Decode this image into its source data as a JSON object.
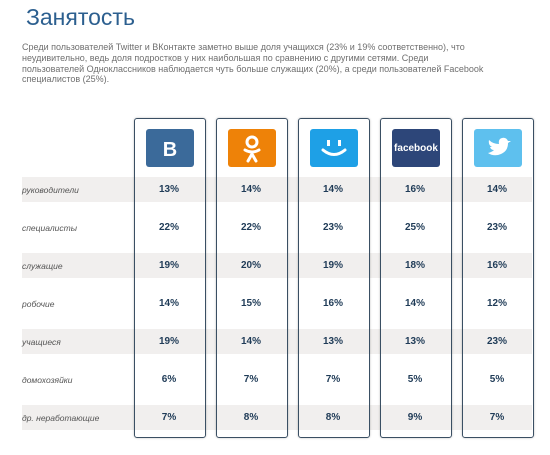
{
  "page": {
    "title": "Занятость",
    "description": "Среди пользователей Twitter и ВКонтакте заметно выше доля учащихся (23% и 19% соответственно), что неудивительно, ведь доля подростков у них наибольшая по сравнению с другими сетями. Среди пользователей Одноклассников наблюдается чуть больше служащих (20%), а среди пользователей Facebook специалистов (25%)."
  },
  "networks": [
    {
      "icon": "vkontakte-logo-icon",
      "color": "#3b6a9a",
      "logo_text": "В"
    },
    {
      "icon": "odnoklassniki-logo-icon",
      "color": "#ee8208",
      "logo_text": ""
    },
    {
      "icon": "moi-mir-logo-icon",
      "color": "#1ea0e6",
      "logo_text": ""
    },
    {
      "icon": "facebook-logo-icon",
      "color": "#2d4679",
      "logo_text": "facebook"
    },
    {
      "icon": "twitter-logo-icon",
      "color": "#5ec0ee",
      "logo_text": ""
    }
  ],
  "chart_data": {
    "type": "table",
    "rows": [
      {
        "label": "руководители",
        "values": [
          "13%",
          "14%",
          "14%",
          "16%",
          "14%"
        ]
      },
      {
        "label": "специалисты",
        "values": [
          "22%",
          "22%",
          "23%",
          "25%",
          "23%"
        ]
      },
      {
        "label": "служащие",
        "values": [
          "19%",
          "20%",
          "19%",
          "18%",
          "16%"
        ]
      },
      {
        "label": "робочие",
        "values": [
          "14%",
          "15%",
          "16%",
          "14%",
          "12%"
        ]
      },
      {
        "label": "учащиеся",
        "values": [
          "19%",
          "14%",
          "13%",
          "13%",
          "23%"
        ]
      },
      {
        "label": "домохозяйки",
        "values": [
          "6%",
          "7%",
          "7%",
          "5%",
          "5%"
        ]
      },
      {
        "label": "др. неработающие",
        "values": [
          "7%",
          "8%",
          "8%",
          "9%",
          "7%"
        ]
      }
    ]
  }
}
